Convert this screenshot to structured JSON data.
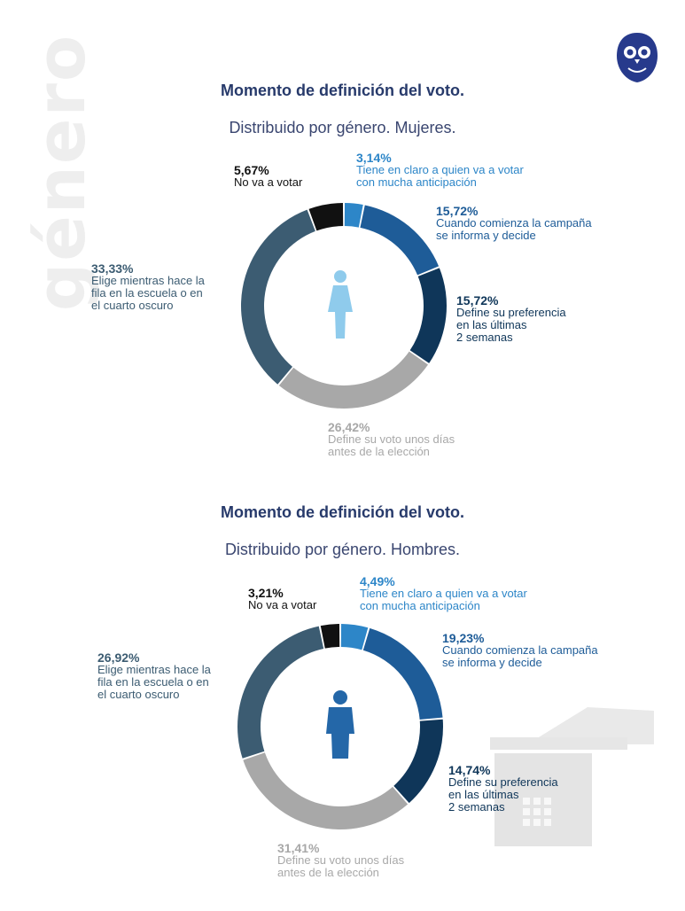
{
  "side_label": "género",
  "charts": [
    {
      "title": "Momento de definición del voto.",
      "subtitle": "Distribuido por género. Mujeres.",
      "labels": [
        {
          "pct": "3,14%",
          "text": "Tiene en claro a quien va a votar\ncon mucha anticipación"
        },
        {
          "pct": "15,72%",
          "text": "Cuando comienza la campaña\nse informa y decide"
        },
        {
          "pct": "15,72%",
          "text": "Define su preferencia\nen las últimas\n2 semanas"
        },
        {
          "pct": "26,42%",
          "text": "Define su voto unos días\nantes de la elección"
        },
        {
          "pct": "33,33%",
          "text": "Elige mientras hace la\nfila en la escuela o en\nel cuarto oscuro"
        },
        {
          "pct": "5,67%",
          "text": "No va a votar"
        }
      ]
    },
    {
      "title": "Momento de definición del voto.",
      "subtitle": "Distribuido por género. Hombres.",
      "labels": [
        {
          "pct": "4,49%",
          "text": "Tiene en claro a quien va a votar\ncon mucha anticipación"
        },
        {
          "pct": "19,23%",
          "text": "Cuando comienza la campaña\nse informa y decide"
        },
        {
          "pct": "14,74%",
          "text": "Define su preferencia\nen las últimas\n2 semanas"
        },
        {
          "pct": "31,41%",
          "text": "Define su voto unos días\nantes de la elección"
        },
        {
          "pct": "26,92%",
          "text": "Elige mientras hace la\nfila en la escuela o en\nel cuarto oscuro"
        },
        {
          "pct": "3,21%",
          "text": "No va a votar"
        }
      ]
    }
  ],
  "chart_data": [
    {
      "type": "pie",
      "title": "Momento de definición del voto.",
      "subtitle": "Distribuido por género. Mujeres.",
      "categories": [
        "Tiene en claro a quien va a votar con mucha anticipación",
        "Cuando comienza la campaña se informa y decide",
        "Define su preferencia en las últimas 2 semanas",
        "Define su voto unos días antes de la elección",
        "Elige mientras hace la fila en la escuela o en el cuarto oscuro",
        "No va a votar"
      ],
      "values": [
        3.14,
        15.72,
        15.72,
        26.42,
        33.33,
        5.67
      ],
      "colors": [
        "#2d86c8",
        "#1e5c98",
        "#0f3659",
        "#a8a8a8",
        "#3c5c72",
        "#111111"
      ],
      "icon_color": "#8fcbec"
    },
    {
      "type": "pie",
      "title": "Momento de definición del voto.",
      "subtitle": "Distribuido por género. Hombres.",
      "categories": [
        "Tiene en claro a quien va a votar con mucha anticipación",
        "Cuando comienza la campaña se informa y decide",
        "Define su preferencia en las últimas 2 semanas",
        "Define su voto unos días antes de la elección",
        "Elige mientras hace la fila en la escuela o en el cuarto oscuro",
        "No va a votar"
      ],
      "values": [
        4.49,
        19.23,
        14.74,
        31.41,
        26.92,
        3.21
      ],
      "colors": [
        "#2d86c8",
        "#1e5c98",
        "#0f3659",
        "#a8a8a8",
        "#3c5c72",
        "#111111"
      ],
      "icon_color": "#2467a8"
    }
  ],
  "label_colors": [
    "#2d86c8",
    "#1e5c98",
    "#0f3659",
    "#a8a8a8",
    "#3c5c72",
    "#111111"
  ]
}
